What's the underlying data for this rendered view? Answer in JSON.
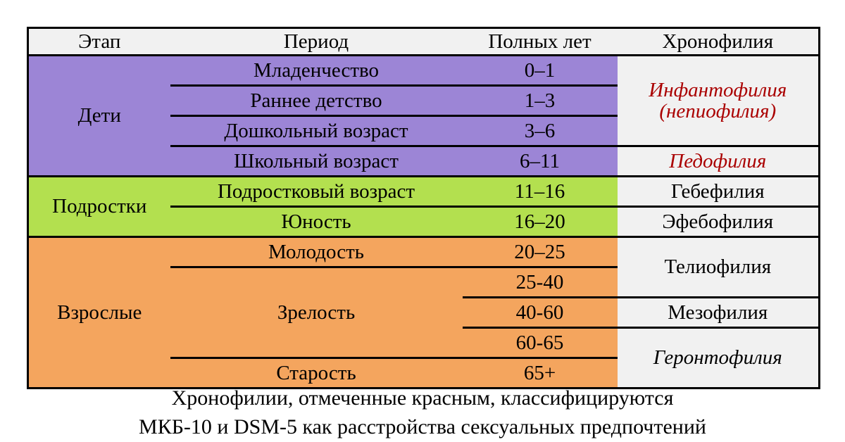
{
  "table": {
    "header": {
      "stage": "Этап",
      "period": "Период",
      "years": "Полных лет",
      "chrono": "Хронофилия"
    },
    "stages": {
      "children": "Дети",
      "teens": "Подростки",
      "adults": "Взрослые"
    },
    "periods": {
      "infancy": "Младенчество",
      "early_childhood": "Раннее детство",
      "preschool": "Дошкольный возраст",
      "school": "Школьный возраст",
      "adolescence": "Подростковый возраст",
      "youth": "Юность",
      "young_adulthood": "Молодость",
      "maturity": "Зрелость",
      "old_age": "Старость"
    },
    "years": {
      "infancy": "0–1",
      "early_childhood": "1–3",
      "preschool": "3–6",
      "school": "6–11",
      "adolescence": "11–16",
      "youth": "16–20",
      "young_adulthood": "20–25",
      "maturity_1": "25-40",
      "maturity_2": "40-60",
      "maturity_3": "60-65",
      "old_age": "65+"
    },
    "chronophilias": {
      "infantophilia": "Инфантофилия",
      "infantophilia_note": "(непиофилия)",
      "pedophilia": "Педофилия",
      "hebephilia": "Гебефилия",
      "ephebophilia": "Эфебофилия",
      "teleiophilia": "Телиофилия",
      "mesophilia": "Мезофилия",
      "gerontophilia": "Геронтофилия"
    }
  },
  "footer": {
    "line1": "Хронофилии, отмеченные красным, классифицируются",
    "line2": "МКБ-10 и DSM-5 как расстройства сексуальных предпочтений"
  },
  "colors": {
    "children_bg": "#9c85d6",
    "teens_bg": "#b3e04f",
    "adults_bg": "#f4a55e",
    "header_bg": "#f1f1f1",
    "chrono_column_bg": "#f1f1f1",
    "red_text": "#aa0000",
    "border": "#000000"
  },
  "chart_data": {
    "type": "table",
    "title": "",
    "columns": [
      "Этап",
      "Период",
      "Полных лет",
      "Хронофилия"
    ],
    "rows": [
      [
        "Дети",
        "Младенчество",
        "0–1",
        "Инфантофилия (непиофилия)"
      ],
      [
        "Дети",
        "Раннее детство",
        "1–3",
        "Инфантофилия (непиофилия)"
      ],
      [
        "Дети",
        "Дошкольный возраст",
        "3–6",
        "Инфантофилия (непиофилия)"
      ],
      [
        "Дети",
        "Школьный возраст",
        "6–11",
        "Педофилия"
      ],
      [
        "Подростки",
        "Подростковый возраст",
        "11–16",
        "Гебефилия"
      ],
      [
        "Подростки",
        "Юность",
        "16–20",
        "Эфебофилия"
      ],
      [
        "Взрослые",
        "Молодость",
        "20–25",
        "Телиофилия"
      ],
      [
        "Взрослые",
        "Зрелость",
        "25-40",
        "Телиофилия"
      ],
      [
        "Взрослые",
        "Зрелость",
        "40-60",
        "Мезофилия"
      ],
      [
        "Взрослые",
        "Зрелость",
        "60-65",
        "Геронтофилия"
      ],
      [
        "Взрослые",
        "Старость",
        "65+",
        "Геронтофилия"
      ]
    ],
    "red_marked": [
      "Инфантофилия (непиофилия)",
      "Педофилия"
    ],
    "note": "Хронофилии, отмеченные красным, классифицируются МКБ-10 и DSM-5 как расстройства сексуальных предпочтений"
  }
}
